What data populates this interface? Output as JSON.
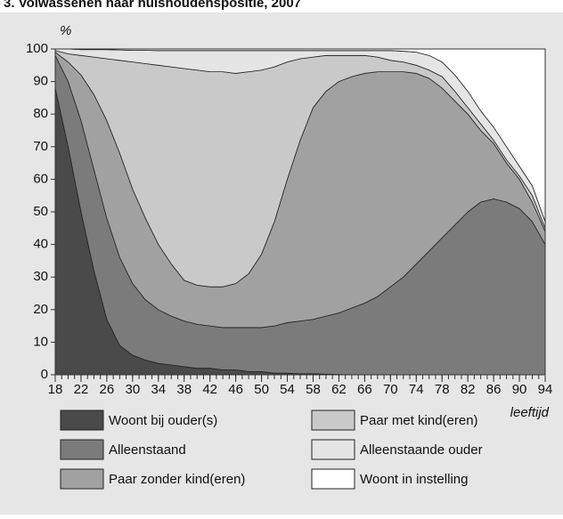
{
  "chart_data": {
    "type": "stacked_area",
    "title": "3. Volwassenen naar huishoudenspositie, 2007",
    "y_label": "%",
    "x_label": "leeftijd",
    "x": [
      18,
      20,
      22,
      24,
      26,
      28,
      30,
      32,
      34,
      36,
      38,
      40,
      42,
      44,
      46,
      48,
      50,
      52,
      54,
      56,
      58,
      60,
      62,
      64,
      66,
      68,
      70,
      72,
      74,
      76,
      78,
      80,
      82,
      84,
      86,
      88,
      90,
      92,
      94
    ],
    "xlim": [
      18,
      94
    ],
    "xticks": [
      18,
      22,
      26,
      30,
      34,
      38,
      42,
      46,
      50,
      54,
      58,
      62,
      66,
      70,
      74,
      78,
      82,
      86,
      90,
      94
    ],
    "ylim": [
      0,
      100
    ],
    "yticks": [
      0,
      10,
      20,
      30,
      40,
      50,
      60,
      70,
      80,
      90,
      100
    ],
    "series": [
      {
        "name": "Woont bij ouder(s)",
        "color": "#4a4a4a",
        "values": [
          88,
          70,
          50,
          32,
          17,
          9,
          6,
          4.5,
          3.5,
          3,
          2.5,
          2,
          2,
          1.5,
          1.5,
          1,
          1,
          0.5,
          0.5,
          0.3,
          0.3,
          0.2,
          0.1,
          0,
          0,
          0,
          0,
          0,
          0,
          0,
          0,
          0,
          0,
          0,
          0,
          0,
          0,
          0,
          0
        ]
      },
      {
        "name": "Alleenstaand",
        "color": "#7b7b7b",
        "values": [
          10,
          20,
          28,
          31,
          31,
          27,
          22,
          18.5,
          16.5,
          15,
          14,
          13.5,
          13,
          13,
          13,
          13.5,
          13.5,
          14.5,
          15.5,
          16.2,
          16.7,
          17.8,
          18.9,
          20.5,
          22,
          24,
          27,
          30,
          34,
          38,
          42,
          46,
          50,
          53,
          54,
          53,
          51,
          47,
          40
        ]
      },
      {
        "name": "Paar zonder kind(eren)",
        "color": "#a1a1a1",
        "values": [
          1,
          6,
          14,
          23,
          30,
          32,
          29,
          25,
          20,
          16,
          12.5,
          12,
          12,
          12.5,
          13.5,
          16.5,
          22.5,
          32,
          44,
          55.5,
          65,
          69,
          71,
          71,
          70.5,
          69,
          66,
          63,
          58.5,
          53,
          46,
          38,
          30,
          22,
          17,
          12,
          9,
          6,
          4
        ]
      },
      {
        "name": "Paar met kind(eren)",
        "color": "#c9c9c9",
        "values": [
          0.5,
          2.5,
          6,
          11.5,
          19,
          28.5,
          39,
          47.5,
          55,
          60.5,
          65,
          66,
          66,
          66,
          64.5,
          62,
          56.5,
          47.5,
          36,
          25,
          15.5,
          11,
          8,
          6.5,
          5.5,
          4.5,
          3.5,
          3,
          2.5,
          2.5,
          3.5,
          3,
          2,
          2,
          1,
          1,
          1,
          2,
          1
        ]
      },
      {
        "name": "Alleenstaande ouder",
        "color": "#e5e5e5",
        "values": [
          0.5,
          1.5,
          1.8,
          2.3,
          2.8,
          3.2,
          3.6,
          4.1,
          4.5,
          5,
          5.5,
          6,
          6.5,
          6.5,
          7,
          6.5,
          6,
          5,
          3.5,
          2.5,
          2,
          1.5,
          1.5,
          1.5,
          1.5,
          2,
          3,
          3.3,
          4,
          4.5,
          4.5,
          5,
          5,
          4,
          4,
          4,
          3,
          3,
          2
        ]
      },
      {
        "name": "Woont in instelling",
        "color": "#ffffff",
        "values": [
          0,
          0,
          0.2,
          0.2,
          0.2,
          0.3,
          0.4,
          0.4,
          0.5,
          0.5,
          0.5,
          0.5,
          0.5,
          0.5,
          0.5,
          0.5,
          0.5,
          0.5,
          0.5,
          0.5,
          0.5,
          0.5,
          0.5,
          0.5,
          0.5,
          0.5,
          0.5,
          0.7,
          1,
          2,
          4,
          8,
          13,
          19,
          24,
          30,
          36,
          42,
          53
        ]
      }
    ]
  }
}
